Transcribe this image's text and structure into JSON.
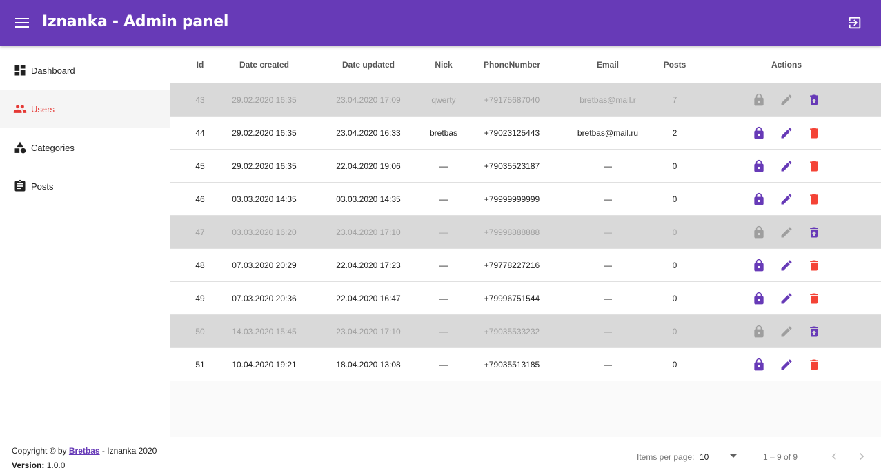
{
  "header": {
    "title": "Iznanka - Admin panel",
    "menu_icon": "menu-icon",
    "logout_icon": "logout-icon"
  },
  "sidebar": {
    "items": [
      {
        "label": "Dashboard",
        "icon": "dashboard-icon"
      },
      {
        "label": "Users",
        "icon": "people-icon",
        "active": true
      },
      {
        "label": "Categories",
        "icon": "category-icon"
      },
      {
        "label": "Posts",
        "icon": "assignment-icon"
      }
    ],
    "footer": {
      "copyright_prefix": "Copyright © by",
      "author": "Bretbas",
      "copyright_suffix": "- Iznanka 2020",
      "version_label": "Version:",
      "version_value": "1.0.0"
    }
  },
  "table": {
    "columns": [
      "Id",
      "Date created",
      "Date updated",
      "Nick",
      "PhoneNumber",
      "Email",
      "Posts",
      "Actions"
    ],
    "rows": [
      {
        "id": "43",
        "created": "29.02.2020 16:35",
        "updated": "23.04.2020 17:09",
        "nick": "qwerty",
        "phone": "+79175687040",
        "email": "bretbas@mail.r",
        "posts": "7",
        "deleted": true
      },
      {
        "id": "44",
        "created": "29.02.2020 16:35",
        "updated": "23.04.2020 16:33",
        "nick": "bretbas",
        "phone": "+79023125443",
        "email": "bretbas@mail.ru",
        "posts": "2",
        "deleted": false
      },
      {
        "id": "45",
        "created": "29.02.2020 16:35",
        "updated": "22.04.2020 19:06",
        "nick": "—",
        "phone": "+79035523187",
        "email": "—",
        "posts": "0",
        "deleted": false
      },
      {
        "id": "46",
        "created": "03.03.2020 14:35",
        "updated": "03.03.2020 14:35",
        "nick": "—",
        "phone": "+79999999999",
        "email": "—",
        "posts": "0",
        "deleted": false
      },
      {
        "id": "47",
        "created": "03.03.2020 16:20",
        "updated": "23.04.2020 17:10",
        "nick": "—",
        "phone": "+79998888888",
        "email": "—",
        "posts": "0",
        "deleted": true
      },
      {
        "id": "48",
        "created": "07.03.2020 20:29",
        "updated": "22.04.2020 17:23",
        "nick": "—",
        "phone": "+79778227216",
        "email": "—",
        "posts": "0",
        "deleted": false
      },
      {
        "id": "49",
        "created": "07.03.2020 20:36",
        "updated": "22.04.2020 16:47",
        "nick": "—",
        "phone": "+79996751544",
        "email": "—",
        "posts": "0",
        "deleted": false
      },
      {
        "id": "50",
        "created": "14.03.2020 15:45",
        "updated": "23.04.2020 17:10",
        "nick": "—",
        "phone": "+79035533232",
        "email": "—",
        "posts": "0",
        "deleted": true
      },
      {
        "id": "51",
        "created": "10.04.2020 19:21",
        "updated": "18.04.2020 13:08",
        "nick": "—",
        "phone": "+79035513185",
        "email": "—",
        "posts": "0",
        "deleted": false
      }
    ]
  },
  "paginator": {
    "items_per_page_label": "Items per page:",
    "items_per_page_value": "10",
    "range_label": "1 – 9 of 9"
  },
  "colors": {
    "primary": "#673ab7",
    "warn": "#f44336",
    "disabled": "#9e9e9e",
    "active_nav": "#e53935"
  }
}
